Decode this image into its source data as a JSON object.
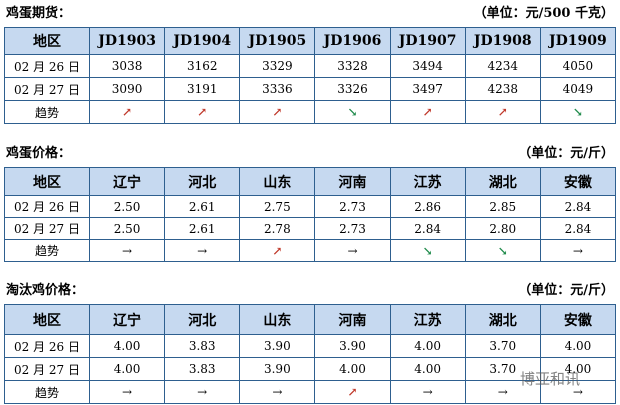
{
  "tables": [
    {
      "title": "鸡蛋期货：",
      "unit": "（单位：元/500 千克）",
      "header": [
        "地区",
        "JD1903",
        "JD1904",
        "JD1905",
        "JD1906",
        "JD1907",
        "JD1908",
        "JD1909"
      ],
      "rows": [
        [
          "02 月 26 日",
          "3038",
          "3162",
          "3329",
          "3328",
          "3494",
          "4234",
          "4050"
        ],
        [
          "02 月 27 日",
          "3090",
          "3191",
          "3336",
          "3326",
          "3497",
          "4238",
          "4049"
        ],
        [
          "趋势",
          "↗",
          "↗",
          "↗",
          "↘",
          "↗",
          "↗",
          "↘"
        ]
      ]
    },
    {
      "title": "鸡蛋价格：",
      "unit": "（单位：元/斤）",
      "header": [
        "地区",
        "辽宁",
        "河北",
        "山东",
        "河南",
        "江苏",
        "湖北",
        "安徽"
      ],
      "rows": [
        [
          "02 月 26 日",
          "2.50",
          "2.61",
          "2.75",
          "2.73",
          "2.86",
          "2.85",
          "2.84"
        ],
        [
          "02 月 27 日",
          "2.50",
          "2.61",
          "2.78",
          "2.73",
          "2.84",
          "2.80",
          "2.84"
        ],
        [
          "趋势",
          "→",
          "→",
          "↗",
          "→",
          "↘",
          "↘",
          "→"
        ]
      ]
    },
    {
      "title": "淘汰鸡价格：",
      "unit": "（单位：元/斤）",
      "header": [
        "地区",
        "辽宁",
        "河北",
        "山东",
        "河南",
        "江苏",
        "湖北",
        "安徽"
      ],
      "rows": [
        [
          "02 月 26 日",
          "4.00",
          "3.83",
          "3.90",
          "3.90",
          "4.00",
          "3.70",
          "4.00"
        ],
        [
          "02 月 27 日",
          "4.00",
          "3.83",
          "3.90",
          "4.00",
          "4.00",
          "3.70",
          "4.00"
        ],
        [
          "趋势",
          "→",
          "→",
          "→",
          "↗",
          "→",
          "→",
          "→"
        ]
      ]
    }
  ],
  "watermark": "博亚和讯"
}
